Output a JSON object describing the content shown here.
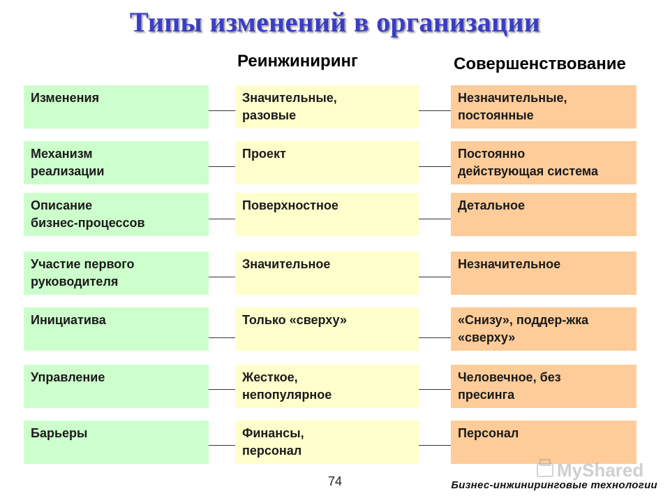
{
  "title": "Типы изменений в организации",
  "columns": {
    "reengineering": "Реинжиниринг",
    "improvement": "Совершенствование"
  },
  "rows": [
    {
      "criterion": "Изменения",
      "reengineering": "Значительные,\nразовые",
      "improvement": "Незначительные,\nпостоянные"
    },
    {
      "criterion": "Механизм\nреализации",
      "reengineering": "Проект",
      "improvement": "Постоянно\nдействующая система"
    },
    {
      "criterion": "Описание\nбизнес-процессов",
      "reengineering": "Поверхностное",
      "improvement": "Детальное"
    },
    {
      "criterion": "Участие первого\nруководителя",
      "reengineering": "Значительное",
      "improvement": "Незначительное"
    },
    {
      "criterion": "Инициатива",
      "reengineering": "Только «сверху»",
      "improvement": "«Снизу», поддер-жка\n«сверху»"
    },
    {
      "criterion": "Управление",
      "reengineering": "Жесткое,\nнепопулярное",
      "improvement": "Человечное, без\nпресинга"
    },
    {
      "criterion": "Барьеры",
      "reengineering": "Финансы,\nперсонал",
      "improvement": "Персонал"
    }
  ],
  "page_number": "74",
  "footer": "Бизнес-инжиниринговые технологии",
  "watermark": {
    "text": "MyShared"
  },
  "colors": {
    "title": "#3a3dc4",
    "criterion_fill": "#ccffcc",
    "reengineering_fill": "#ffffcc",
    "improvement_fill": "#fdcc99"
  }
}
